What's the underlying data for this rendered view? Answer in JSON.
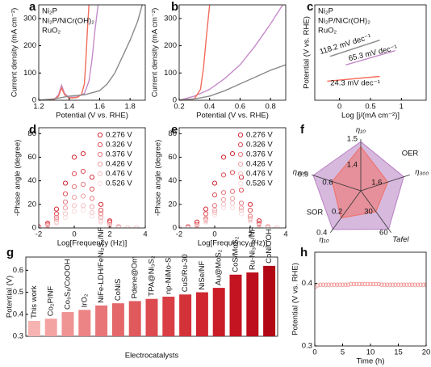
{
  "chart_data": [
    {
      "type": "line",
      "label": "a",
      "xlabel": "Potential (V vs. RHE)",
      "ylabel": "Current density (mA cm⁻²)",
      "xlim": [
        1.2,
        1.9
      ],
      "xticks": [
        1.2,
        1.4,
        1.6,
        1.8
      ],
      "ylim": [
        0,
        350
      ],
      "yticks": [
        0,
        100,
        200,
        300
      ],
      "legend": "upper left",
      "series": [
        {
          "name": "Ni₂P",
          "color": "#c58bc9",
          "x": [
            1.2,
            1.3,
            1.33,
            1.35,
            1.37,
            1.4,
            1.45,
            1.5,
            1.53,
            1.55,
            1.57,
            1.59
          ],
          "values": [
            0,
            2,
            20,
            55,
            25,
            10,
            12,
            25,
            70,
            150,
            260,
            350
          ]
        },
        {
          "name": "Ni₂P/NiCr(OH)₂",
          "color": "#f26d5b",
          "x": [
            1.2,
            1.3,
            1.33,
            1.35,
            1.37,
            1.4,
            1.45,
            1.48,
            1.5,
            1.51,
            1.52,
            1.53
          ],
          "values": [
            0,
            2,
            15,
            45,
            20,
            8,
            10,
            20,
            60,
            150,
            260,
            350
          ]
        },
        {
          "name": "RuO₂",
          "color": "#8a8a8a",
          "x": [
            1.2,
            1.3,
            1.35,
            1.4,
            1.5,
            1.6,
            1.65,
            1.7,
            1.75,
            1.8,
            1.85,
            1.88
          ],
          "values": [
            0,
            5,
            10,
            15,
            20,
            35,
            60,
            100,
            160,
            220,
            290,
            350
          ]
        }
      ]
    },
    {
      "type": "line",
      "label": "b",
      "xlabel": "Potential (V vs. RHE)",
      "ylabel": "Current density (mA cm⁻²)",
      "xlim": [
        0.2,
        0.9
      ],
      "xticks": [
        0.2,
        0.4,
        0.6,
        0.8
      ],
      "ylim": [
        0,
        350
      ],
      "yticks": [
        0,
        100,
        200,
        300
      ],
      "series": [
        {
          "color": "#c58bc9",
          "x": [
            0.2,
            0.3,
            0.4,
            0.5,
            0.6,
            0.7,
            0.8,
            0.88
          ],
          "values": [
            0,
            15,
            40,
            80,
            130,
            200,
            280,
            350
          ]
        },
        {
          "color": "#f26d5b",
          "x": [
            0.2,
            0.3,
            0.34,
            0.36,
            0.38,
            0.4
          ],
          "values": [
            0,
            5,
            40,
            120,
            240,
            350
          ]
        },
        {
          "color": "#8a8a8a",
          "x": [
            0.2,
            0.3,
            0.4,
            0.5,
            0.6,
            0.7,
            0.8,
            0.9
          ],
          "values": [
            0,
            5,
            15,
            35,
            60,
            85,
            110,
            130
          ]
        }
      ]
    },
    {
      "type": "line",
      "label": "c",
      "xlabel": "Log [j/(mA cm⁻²)]",
      "ylabel": "Potential (V vs. RHE)",
      "xlim": [
        -0.4,
        1.4
      ],
      "xticks": [
        0,
        0.5,
        1
      ],
      "ylim": [
        0,
        1
      ],
      "legend": "upper left",
      "series": [
        {
          "name": "Ni₂P",
          "color": "#c58bc9",
          "x": [
            0.1,
            0.9
          ],
          "values": [
            0.37,
            0.52
          ]
        },
        {
          "name": "Ni₂P/NiCr(OH)₂",
          "color": "#f26d5b",
          "x": [
            -0.2,
            0.65
          ],
          "values": [
            0.2,
            0.25
          ]
        },
        {
          "name": "RuO₂",
          "color": "#8a8a8a",
          "x": [
            -0.15,
            0.65
          ],
          "values": [
            0.46,
            0.63
          ]
        }
      ],
      "annotations": [
        "118.2 mV dec⁻¹",
        "65.3 mV dec⁻¹",
        "24.3 mV dec⁻¹"
      ]
    },
    {
      "type": "scatter",
      "label": "d",
      "xlabel": "Log[Frequency (Hz)]",
      "ylabel": "-Phase angle (degree)",
      "xlim": [
        -2,
        4
      ],
      "xticks": [
        -2,
        0,
        2,
        4
      ],
      "ylim": [
        0,
        85
      ],
      "yticks": [
        0,
        20,
        40,
        60,
        80
      ],
      "legend": "upper right",
      "x": [
        -2,
        -1.5,
        -1,
        -0.5,
        0,
        0.5,
        1,
        1.5,
        2,
        2.5,
        3,
        3.5
      ],
      "series": [
        {
          "name": "0.276 V",
          "color": "#d42a35",
          "values": [
            1,
            4,
            16,
            38,
            60,
            63,
            43,
            20,
            6,
            1,
            0,
            0
          ]
        },
        {
          "name": "0.326 V",
          "color": "#de5259",
          "values": [
            1,
            3,
            12,
            29,
            46,
            48,
            33,
            15,
            5,
            1,
            0,
            0
          ]
        },
        {
          "name": "0.376 V",
          "color": "#e6797e",
          "values": [
            0,
            3,
            9,
            22,
            35,
            37,
            25,
            12,
            3,
            1,
            0,
            0
          ]
        },
        {
          "name": "0.426 V",
          "color": "#ee9ea2",
          "values": [
            0,
            2,
            7,
            17,
            26,
            27,
            18,
            9,
            3,
            1,
            0,
            0
          ]
        },
        {
          "name": "0.476 V",
          "color": "#f4c0c2",
          "values": [
            0,
            1,
            5,
            12,
            19,
            19,
            13,
            6,
            2,
            0,
            0,
            0
          ]
        },
        {
          "name": "0.526 V",
          "color": "#f9dcdd",
          "values": [
            0,
            1,
            4,
            9,
            14,
            15,
            10,
            5,
            1,
            0,
            0,
            0
          ]
        }
      ]
    },
    {
      "type": "scatter",
      "label": "e",
      "xlabel": "Log[Frequency (Hz)]",
      "ylabel": "-Phase angle (degree)",
      "xlim": [
        -2,
        4
      ],
      "xticks": [
        -2,
        0,
        2,
        4
      ],
      "ylim": [
        0,
        85
      ],
      "yticks": [
        0,
        20,
        40,
        60,
        80
      ],
      "legend": "upper right",
      "x": [
        -2,
        -1.5,
        -1,
        -0.5,
        0,
        0.5,
        1,
        1.5,
        2,
        2.5,
        3,
        3.5
      ],
      "series": [
        {
          "name": "0.276 V",
          "color": "#d42a35",
          "values": [
            0,
            1,
            5,
            16,
            38,
            60,
            63,
            43,
            20,
            6,
            1,
            0
          ]
        },
        {
          "name": "0.326 V",
          "color": "#de5259",
          "values": [
            0,
            0,
            3,
            12,
            28,
            45,
            47,
            32,
            15,
            4,
            1,
            0
          ]
        },
        {
          "name": "0.376 V",
          "color": "#e6797e",
          "values": [
            0,
            0,
            2,
            8,
            19,
            30,
            31,
            21,
            10,
            3,
            1,
            0
          ]
        },
        {
          "name": "0.426 V",
          "color": "#ee9ea2",
          "values": [
            0,
            0,
            2,
            7,
            15,
            24,
            25,
            17,
            8,
            2,
            1,
            0
          ]
        },
        {
          "name": "0.476 V",
          "color": "#f4c0c2",
          "values": [
            0,
            0,
            2,
            6,
            13,
            20,
            21,
            15,
            7,
            2,
            0,
            0
          ]
        },
        {
          "name": "0.526 V",
          "color": "#f9dcdd",
          "values": [
            0,
            0,
            1,
            5,
            11,
            17,
            17,
            12,
            6,
            2,
            0,
            0
          ]
        }
      ]
    },
    {
      "type": "radar",
      "label": "f",
      "group_labels": [
        "OER",
        "SOR"
      ],
      "axes": [
        {
          "label": "η₁₀",
          "range": [
            1.3,
            1.5
          ],
          "ticks": [
            1.4,
            1.5
          ]
        },
        {
          "label": "η₃₀₀",
          "range": [
            1.4,
            1.8
          ],
          "ticks": [
            1.6
          ]
        },
        {
          "label": "Tafel",
          "range": [
            0,
            60
          ],
          "ticks": [
            30,
            60
          ]
        },
        {
          "label": "η₁₀",
          "range": [
            0,
            0.4
          ],
          "ticks": [
            0.2,
            0.4
          ]
        },
        {
          "label": "η₃₀₀",
          "range": [
            0.3,
            0.9
          ],
          "ticks": [
            0.6,
            0.9
          ]
        }
      ],
      "series": [
        {
          "color": "#b77fc2",
          "values": [
            1.49,
            1.75,
            55,
            0.37,
            0.88
          ]
        },
        {
          "color": "#f07065",
          "values": [
            1.47,
            1.62,
            30,
            0.26,
            0.65
          ]
        }
      ]
    },
    {
      "type": "bar",
      "label": "g",
      "xlabel": "Electrocatalysts",
      "ylabel": "Potential (V)",
      "ylim": [
        0.3,
        0.66
      ],
      "yticks": [
        0.3,
        0.4,
        0.5,
        0.6
      ],
      "categories": [
        "This work",
        "Co₂P/NF",
        "Co₉S₈/CoOOH",
        "IrO₂",
        "NiFe-LDH/FeNi₂S₄/NF",
        "CoNiS",
        "Pdene@Om",
        "TPA@Ni₃S₂",
        "np-NiMo-S",
        "CuS/Ru-30",
        "NiSe/NF",
        "Au@MoS₂",
        "CoS/MoS₂",
        "Ru-Ni₃S₂/NF",
        "CoNiOOH"
      ],
      "values": [
        0.37,
        0.38,
        0.41,
        0.42,
        0.44,
        0.45,
        0.46,
        0.47,
        0.48,
        0.49,
        0.5,
        0.52,
        0.58,
        0.59,
        0.62
      ],
      "colors": [
        "#f6b3b1",
        "#f3a3a2",
        "#f09393",
        "#ec8485",
        "#e87577",
        "#e46769",
        "#e0595c",
        "#dc4b50",
        "#d83e44",
        "#d43239",
        "#cf2630",
        "#ca1c28",
        "#c41422",
        "#bc0e1c",
        "#b20816"
      ]
    },
    {
      "type": "scatter",
      "label": "h",
      "xlabel": "Time (h)",
      "ylabel": "Potential (V vs. RHE)",
      "xlim": [
        0,
        20
      ],
      "xticks": [
        0,
        5,
        10,
        15,
        20
      ],
      "ylim": [
        0.3,
        0.45
      ],
      "yticks": [
        0.3,
        0.4
      ],
      "color": "#f29a9a",
      "x": [
        0,
        0.5,
        1,
        1.5,
        2,
        2.5,
        3,
        3.5,
        4,
        4.5,
        5,
        5.5,
        6,
        6.5,
        7,
        7.5,
        8,
        8.5,
        9,
        9.5,
        10,
        10.5,
        11,
        11.5,
        12,
        12.5,
        13,
        13.5,
        14,
        14.5,
        15,
        15.5,
        16,
        16.5,
        17,
        17.5,
        18,
        18.5,
        19,
        19.5,
        20
      ],
      "values": [
        0.394,
        0.397,
        0.398,
        0.398,
        0.398,
        0.398,
        0.398,
        0.398,
        0.398,
        0.398,
        0.398,
        0.398,
        0.398,
        0.399,
        0.399,
        0.399,
        0.399,
        0.399,
        0.399,
        0.399,
        0.399,
        0.399,
        0.399,
        0.399,
        0.398,
        0.398,
        0.398,
        0.398,
        0.398,
        0.398,
        0.398,
        0.398,
        0.398,
        0.398,
        0.398,
        0.398,
        0.398,
        0.398,
        0.398,
        0.398,
        0.398
      ]
    }
  ]
}
